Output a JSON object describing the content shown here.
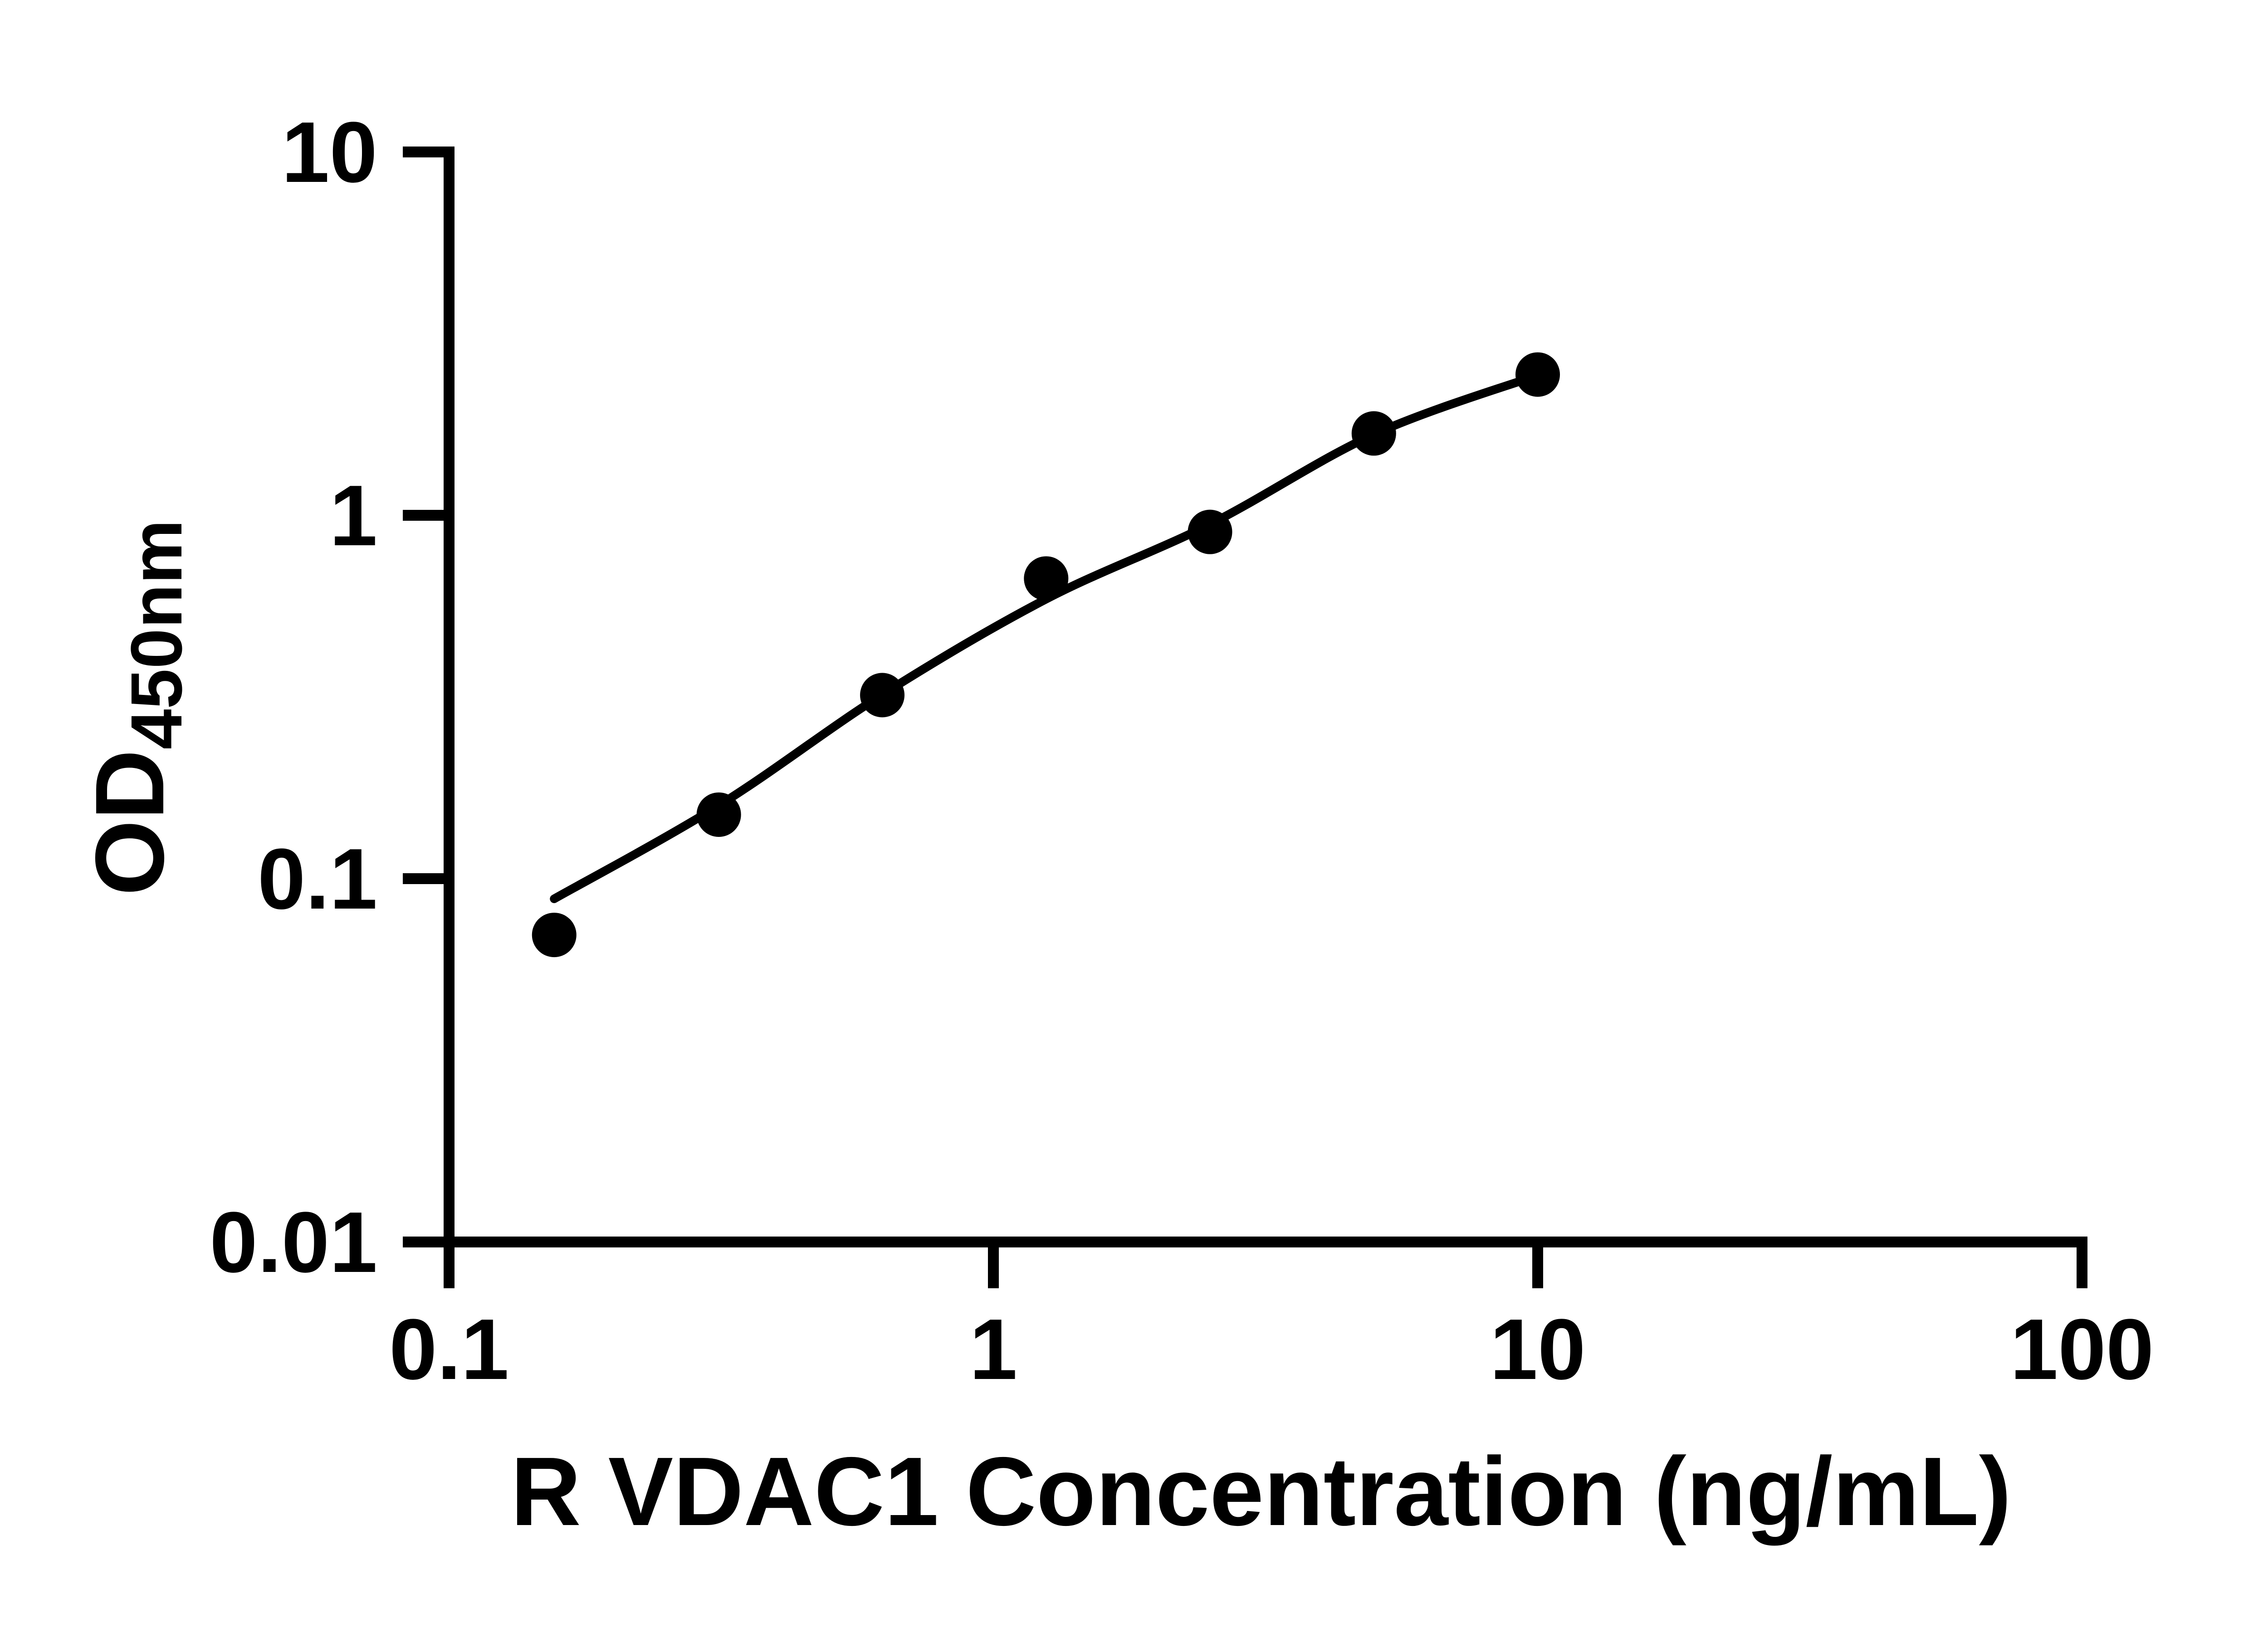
{
  "chart_data": {
    "type": "scatter",
    "title": "",
    "xlabel": "R VDAC1 Concentration (ng/mL)",
    "ylabel_main": "OD",
    "ylabel_sub": "450nm",
    "x_scale": "log",
    "y_scale": "log",
    "xlim": [
      0.1,
      100
    ],
    "ylim": [
      0.01,
      10
    ],
    "grid": false,
    "legend": "none",
    "x_ticks": [
      {
        "value": 0.1,
        "label": "0.1"
      },
      {
        "value": 1,
        "label": "1"
      },
      {
        "value": 10,
        "label": "10"
      },
      {
        "value": 100,
        "label": "100"
      }
    ],
    "y_ticks": [
      {
        "value": 10,
        "label": "10"
      },
      {
        "value": 1,
        "label": "1"
      },
      {
        "value": 0.1,
        "label": "0.1"
      },
      {
        "value": 0.01,
        "label": "0.01"
      }
    ],
    "points": [
      {
        "x": 0.156,
        "y": 0.07
      },
      {
        "x": 0.313,
        "y": 0.15
      },
      {
        "x": 0.625,
        "y": 0.32
      },
      {
        "x": 1.25,
        "y": 0.67
      },
      {
        "x": 2.5,
        "y": 0.9
      },
      {
        "x": 5,
        "y": 1.68
      },
      {
        "x": 10,
        "y": 2.44
      }
    ],
    "fit_curve": [
      {
        "x": 0.156,
        "y": 0.088
      },
      {
        "x": 0.313,
        "y": 0.159
      },
      {
        "x": 0.625,
        "y": 0.321
      },
      {
        "x": 1.25,
        "y": 0.588
      },
      {
        "x": 2.5,
        "y": 0.945
      },
      {
        "x": 5,
        "y": 1.67
      },
      {
        "x": 10,
        "y": 2.43
      }
    ],
    "colors": {
      "axis": "#000000",
      "points": "#000000",
      "curve": "#000000",
      "background": "#ffffff"
    }
  }
}
